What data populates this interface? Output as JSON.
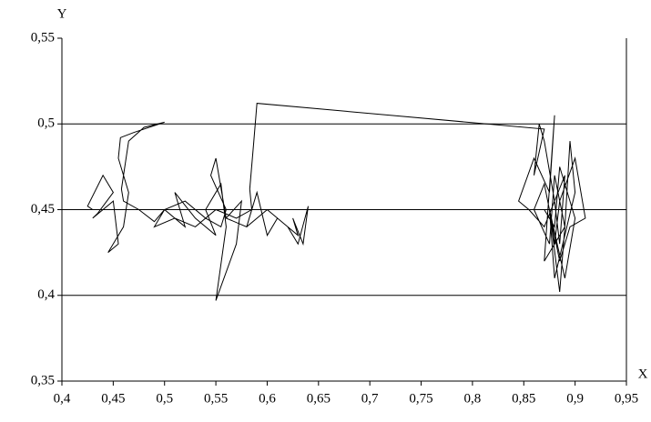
{
  "chart_data": {
    "type": "line",
    "x_label": "X",
    "y_label": "Y",
    "x": [
      0.43,
      0.425,
      0.44,
      0.45,
      0.435,
      0.43,
      0.45,
      0.455,
      0.445,
      0.46,
      0.465,
      0.455,
      0.457,
      0.47,
      0.5,
      0.48,
      0.465,
      0.458,
      0.46,
      0.475,
      0.49,
      0.5,
      0.52,
      0.51,
      0.53,
      0.55,
      0.54,
      0.555,
      0.56,
      0.55,
      0.57,
      0.575,
      0.56,
      0.58,
      0.59,
      0.6,
      0.61,
      0.62,
      0.63,
      0.64,
      0.635,
      0.625,
      0.63,
      0.62,
      0.6,
      0.58,
      0.56,
      0.55,
      0.545,
      0.56,
      0.555,
      0.54,
      0.52,
      0.5,
      0.49,
      0.51,
      0.53,
      0.55,
      0.57,
      0.585,
      0.583,
      0.587,
      0.59,
      0.87,
      0.86,
      0.865,
      0.87,
      0.88,
      0.885,
      0.89,
      0.87,
      0.855,
      0.845,
      0.86,
      0.875,
      0.88,
      0.87,
      0.89,
      0.895,
      0.9,
      0.88,
      0.875,
      0.885,
      0.89,
      0.88,
      0.875,
      0.86,
      0.87,
      0.885,
      0.895,
      0.91,
      0.9,
      0.885,
      0.88,
      0.875,
      0.89,
      0.9,
      0.885,
      0.88,
      0.87
    ],
    "values": [
      0.45,
      0.452,
      0.47,
      0.46,
      0.448,
      0.445,
      0.455,
      0.43,
      0.425,
      0.44,
      0.46,
      0.48,
      0.492,
      0.495,
      0.501,
      0.498,
      0.49,
      0.462,
      0.455,
      0.45,
      0.443,
      0.45,
      0.44,
      0.46,
      0.445,
      0.435,
      0.45,
      0.465,
      0.44,
      0.397,
      0.43,
      0.455,
      0.445,
      0.44,
      0.46,
      0.435,
      0.445,
      0.44,
      0.43,
      0.452,
      0.43,
      0.445,
      0.435,
      0.44,
      0.45,
      0.44,
      0.445,
      0.48,
      0.47,
      0.45,
      0.44,
      0.445,
      0.455,
      0.45,
      0.44,
      0.445,
      0.44,
      0.45,
      0.445,
      0.45,
      0.462,
      0.49,
      0.512,
      0.497,
      0.47,
      0.5,
      0.49,
      0.455,
      0.43,
      0.47,
      0.44,
      0.45,
      0.455,
      0.48,
      0.46,
      0.505,
      0.42,
      0.44,
      0.49,
      0.46,
      0.41,
      0.45,
      0.402,
      0.44,
      0.47,
      0.43,
      0.45,
      0.465,
      0.42,
      0.44,
      0.445,
      0.48,
      0.455,
      0.43,
      0.45,
      0.41,
      0.445,
      0.475,
      0.44,
      0.45
    ],
    "color": "#000000",
    "xlim": [
      0.4,
      0.95
    ],
    "xticks": [
      {
        "value": 0.4,
        "label": "0,4"
      },
      {
        "value": 0.45,
        "label": "0,45"
      },
      {
        "value": 0.5,
        "label": "0,5"
      },
      {
        "value": 0.55,
        "label": "0,55"
      },
      {
        "value": 0.6,
        "label": "0,6"
      },
      {
        "value": 0.65,
        "label": "0,65"
      },
      {
        "value": 0.7,
        "label": "0,7"
      },
      {
        "value": 0.75,
        "label": "0,75"
      },
      {
        "value": 0.8,
        "label": "0,8"
      },
      {
        "value": 0.85,
        "label": "0,85"
      },
      {
        "value": 0.9,
        "label": "0,9"
      },
      {
        "value": 0.95,
        "label": "0,95"
      }
    ],
    "ylim": [
      0.35,
      0.55
    ],
    "yticks": [
      {
        "value": 0.35,
        "label": "0,35"
      },
      {
        "value": 0.4,
        "label": "0,4"
      },
      {
        "value": 0.45,
        "label": "0,45"
      },
      {
        "value": 0.5,
        "label": "0,5"
      },
      {
        "value": 0.55,
        "label": "0,55"
      }
    ],
    "grid": true
  }
}
